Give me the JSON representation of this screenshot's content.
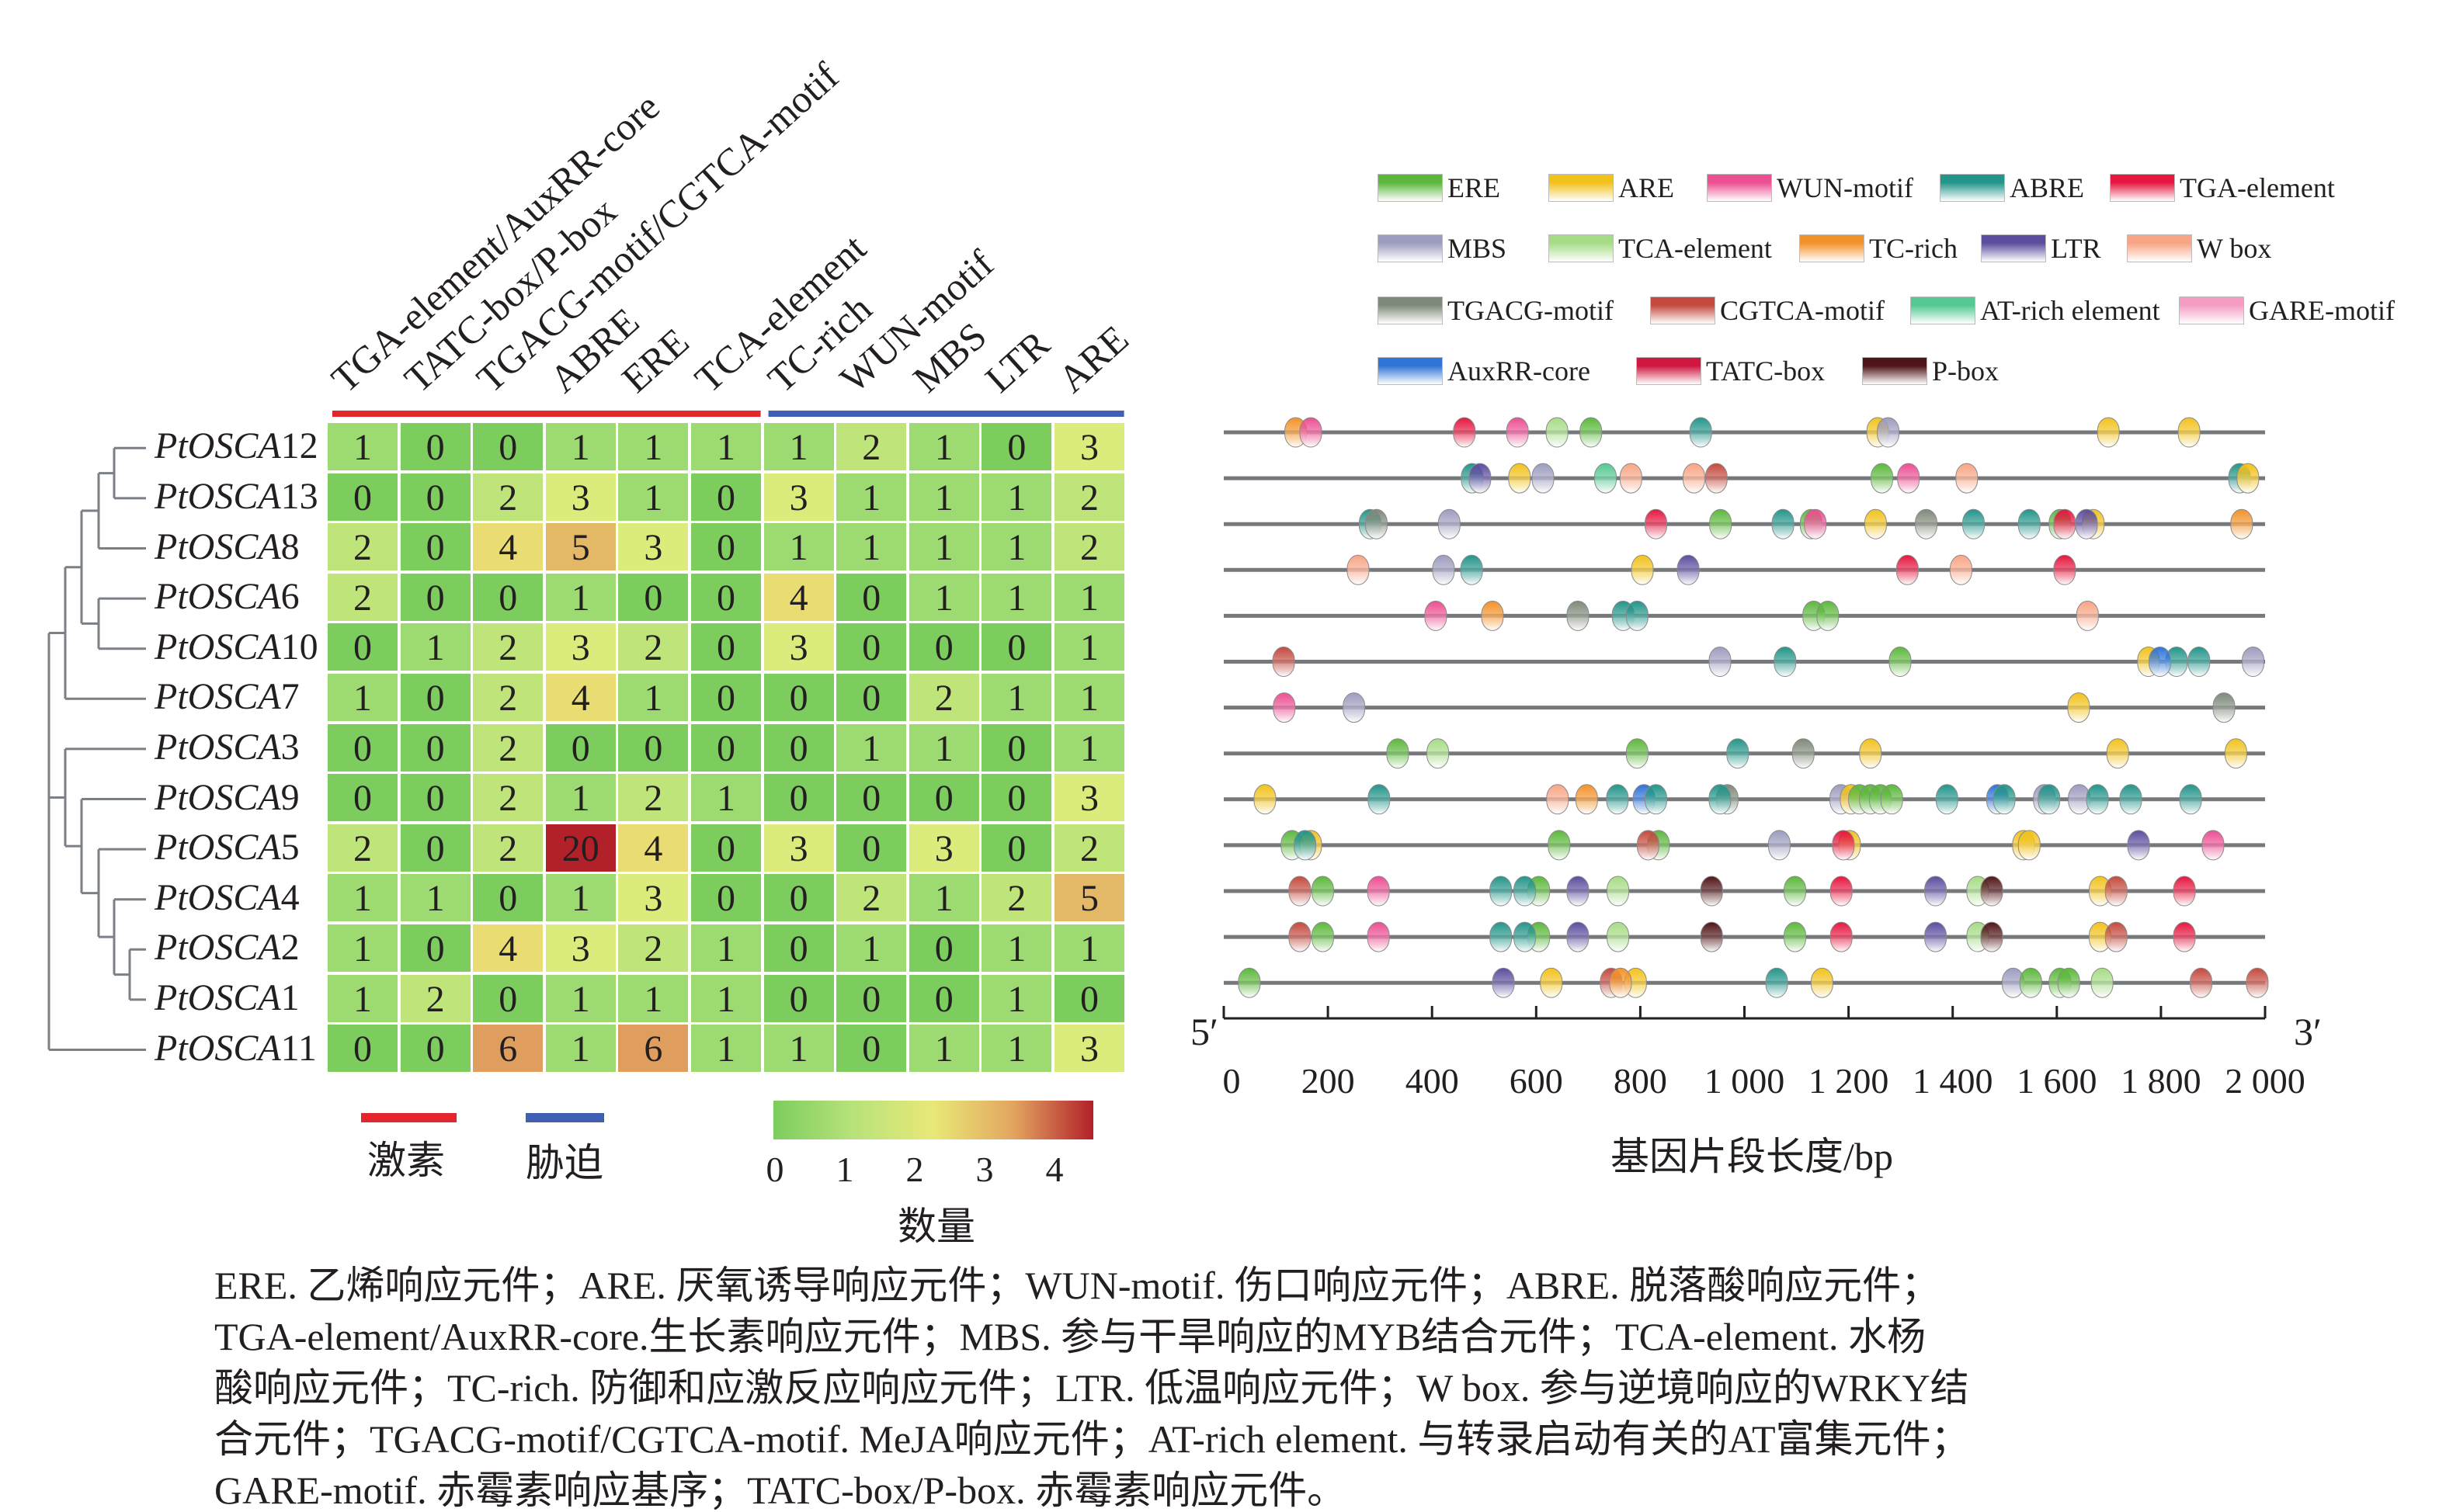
{
  "chart_data": {
    "type": "heatmap",
    "genes": [
      "PtOSCA12",
      "PtOSCA13",
      "PtOSCA8",
      "PtOSCA6",
      "PtOSCA10",
      "PtOSCA7",
      "PtOSCA3",
      "PtOSCA9",
      "PtOSCA5",
      "PtOSCA4",
      "PtOSCA2",
      "PtOSCA1",
      "PtOSCA11"
    ],
    "columns": [
      "TGA-element/AuxRR-core",
      "TATC-box/P-box",
      "TGACG-motif/CGTCA-motif",
      "ABRE",
      "ERE",
      "TCA-element",
      "TC-rich",
      "WUN-motif",
      "MBS",
      "LTR",
      "ARE"
    ],
    "values": [
      [
        1,
        0,
        0,
        1,
        1,
        1,
        1,
        2,
        1,
        0,
        3
      ],
      [
        0,
        0,
        2,
        3,
        1,
        0,
        3,
        1,
        1,
        1,
        2
      ],
      [
        2,
        0,
        4,
        5,
        3,
        0,
        1,
        1,
        1,
        1,
        2
      ],
      [
        2,
        0,
        0,
        1,
        0,
        0,
        4,
        0,
        1,
        1,
        1
      ],
      [
        0,
        1,
        2,
        3,
        2,
        0,
        3,
        0,
        0,
        0,
        1
      ],
      [
        1,
        0,
        2,
        4,
        1,
        0,
        0,
        0,
        2,
        1,
        1
      ],
      [
        0,
        0,
        2,
        0,
        0,
        0,
        0,
        1,
        1,
        0,
        1
      ],
      [
        0,
        0,
        2,
        1,
        2,
        1,
        0,
        0,
        0,
        0,
        3
      ],
      [
        2,
        0,
        2,
        20,
        4,
        0,
        3,
        0,
        3,
        0,
        2
      ],
      [
        1,
        1,
        0,
        1,
        3,
        0,
        0,
        2,
        1,
        2,
        5
      ],
      [
        1,
        0,
        4,
        3,
        2,
        1,
        0,
        1,
        0,
        1,
        1
      ],
      [
        1,
        2,
        0,
        1,
        1,
        1,
        0,
        0,
        0,
        1,
        0
      ],
      [
        0,
        0,
        6,
        1,
        6,
        1,
        1,
        0,
        1,
        1,
        3
      ]
    ],
    "groups": [
      {
        "label": "激素",
        "color": "#e3262b",
        "columns": [
          0,
          5
        ]
      },
      {
        "label": "胁迫",
        "color": "#3f5fb5",
        "columns": [
          6,
          10
        ]
      }
    ],
    "colorbar": {
      "title": "数量",
      "ticks": [
        "0",
        "1",
        "2",
        "3",
        "4"
      ],
      "colors": [
        "#7ccd5e",
        "#b8e27a",
        "#e9e877",
        "#e3a560",
        "#b2202a"
      ]
    },
    "promoter_map": {
      "xlabel": "基因片段长度/bp",
      "xlim": [
        0,
        2000
      ],
      "ticks": [
        "0",
        "200",
        "400",
        "600",
        "800",
        "1 000",
        "1 200",
        "1 400",
        "1 600",
        "1 800",
        "2 000"
      ],
      "five_prime": "5′",
      "three_prime": "3′",
      "rows": [
        [
          [
            "TC-rich",
            138
          ],
          [
            "WUN-motif",
            167
          ],
          [
            "TGA-element",
            462
          ],
          [
            "WUN-motif",
            564
          ],
          [
            "TCA-element",
            640
          ],
          [
            "ERE",
            705
          ],
          [
            "ABRE",
            916
          ],
          [
            "ARE",
            1256
          ],
          [
            "MBS",
            1276
          ],
          [
            "ARE",
            1699
          ],
          [
            "ARE",
            1854
          ]
        ],
        [
          [
            "ABRE",
            477
          ],
          [
            "LTR",
            492
          ],
          [
            "ARE",
            568
          ],
          [
            "MBS",
            613
          ],
          [
            "AT-rich element",
            733
          ],
          [
            "W box",
            782
          ],
          [
            "W box",
            903
          ],
          [
            "CGTCA-motif",
            946
          ],
          [
            "ERE",
            1264
          ],
          [
            "WUN-motif",
            1315
          ],
          [
            "W box",
            1427
          ],
          [
            "ABRE",
            1951
          ],
          [
            "ARE",
            1967
          ]
        ],
        [
          [
            "ABRE",
            281
          ],
          [
            "TGACG-motif",
            293
          ],
          [
            "MBS",
            433
          ],
          [
            "TGA-element",
            830
          ],
          [
            "ERE",
            954
          ],
          [
            "ABRE",
            1074
          ],
          [
            "ERE",
            1128
          ],
          [
            "WUN-motif",
            1136
          ],
          [
            "ARE",
            1252
          ],
          [
            "TGACG-motif",
            1349
          ],
          [
            "ABRE",
            1440
          ],
          [
            "ABRE",
            1547
          ],
          [
            "ERE",
            1606
          ],
          [
            "ARE",
            1670
          ],
          [
            "LTR",
            1657
          ],
          [
            "TGA-element",
            1615
          ],
          [
            "TC-rich",
            1955
          ]
        ],
        [
          [
            "W box",
            258
          ],
          [
            "MBS",
            422
          ],
          [
            "ABRE",
            476
          ],
          [
            "ARE",
            804
          ],
          [
            "LTR",
            892
          ],
          [
            "TGA-element",
            1313
          ],
          [
            "W box",
            1416
          ],
          [
            "TGA-element",
            1615
          ]
        ],
        [
          [
            "WUN-motif",
            407
          ],
          [
            "TC-rich",
            516
          ],
          [
            "TGACG-motif",
            680
          ],
          [
            "ABRE",
            767
          ],
          [
            "ABRE",
            794
          ],
          [
            "ERE",
            1133
          ],
          [
            "ERE",
            1160
          ],
          [
            "W box",
            1659
          ]
        ],
        [
          [
            "CGTCA-motif",
            115
          ],
          [
            "MBS",
            953
          ],
          [
            "ABRE",
            1078
          ],
          [
            "ERE",
            1299
          ],
          [
            "ARE",
            1776
          ],
          [
            "ABRE",
            1830
          ],
          [
            "AuxRR-core",
            1798
          ],
          [
            "ABRE",
            1873
          ],
          [
            "MBS",
            1977
          ]
        ],
        [
          [
            "WUN-motif",
            116
          ],
          [
            "MBS",
            250
          ],
          [
            "ARE",
            1642
          ],
          [
            "TGACG-motif",
            1921
          ]
        ],
        [
          [
            "ERE",
            334
          ],
          [
            "TCA-element",
            411
          ],
          [
            "ERE",
            794
          ],
          [
            "ABRE",
            987
          ],
          [
            "TGACG-motif",
            1113
          ],
          [
            "ARE",
            1242
          ],
          [
            "ARE",
            1717
          ],
          [
            "ARE",
            1944
          ]
        ],
        [
          [
            "ARE",
            79
          ],
          [
            "ABRE",
            298
          ],
          [
            "W box",
            641
          ],
          [
            "TC-rich",
            697
          ],
          [
            "ABRE",
            756
          ],
          [
            "AuxRR-core",
            807
          ],
          [
            "ABRE",
            830
          ],
          [
            "TGACG-motif",
            967
          ],
          [
            "ABRE",
            953
          ],
          [
            "MBS",
            1185
          ],
          [
            "ARE",
            1205
          ],
          [
            "ERE",
            1221
          ],
          [
            "ERE",
            1242
          ],
          [
            "ERE",
            1261
          ],
          [
            "ERE",
            1283
          ],
          [
            "ABRE",
            1389
          ],
          [
            "AuxRR-core",
            1486
          ],
          [
            "ABRE",
            1499
          ],
          [
            "MBS",
            1576
          ],
          [
            "ABRE",
            1585
          ],
          [
            "MBS",
            1643
          ],
          [
            "ABRE",
            1678
          ],
          [
            "ABRE",
            1742
          ],
          [
            "ABRE",
            1857
          ]
        ],
        [
          [
            "ERE",
            131
          ],
          [
            "ARE",
            167
          ],
          [
            "ABRE",
            156
          ],
          [
            "ERE",
            644
          ],
          [
            "ERE",
            835
          ],
          [
            "CGTCA-motif",
            815
          ],
          [
            "MBS",
            1067
          ],
          [
            "ARE",
            1202
          ],
          [
            "TGA-element",
            1190
          ],
          [
            "ARE",
            1536
          ],
          [
            "ARE",
            1547
          ],
          [
            "LTR",
            1757
          ],
          [
            "WUN-motif",
            1900
          ]
        ],
        [
          [
            "CGTCA-motif",
            146
          ],
          [
            "ERE",
            190
          ],
          [
            "WUN-motif",
            297
          ],
          [
            "ABRE",
            532
          ],
          [
            "ERE",
            605
          ],
          [
            "ABRE",
            578
          ],
          [
            "LTR",
            680
          ],
          [
            "TCA-element",
            757
          ],
          [
            "P-box",
            937
          ],
          [
            "ERE",
            1097
          ],
          [
            "TGA-element",
            1186
          ],
          [
            "LTR",
            1367
          ],
          [
            "TCA-element",
            1448
          ],
          [
            "P-box",
            1475
          ],
          [
            "ARE",
            1683
          ],
          [
            "CGTCA-motif",
            1714
          ],
          [
            "TGA-element",
            1845
          ]
        ],
        [
          [
            "CGTCA-motif",
            146
          ],
          [
            "ERE",
            190
          ],
          [
            "WUN-motif",
            297
          ],
          [
            "ABRE",
            532
          ],
          [
            "ERE",
            605
          ],
          [
            "ABRE",
            578
          ],
          [
            "LTR",
            680
          ],
          [
            "TCA-element",
            757
          ],
          [
            "P-box",
            937
          ],
          [
            "ERE",
            1097
          ],
          [
            "TGA-element",
            1186
          ],
          [
            "LTR",
            1367
          ],
          [
            "TCA-element",
            1448
          ],
          [
            "P-box",
            1475
          ],
          [
            "ARE",
            1683
          ],
          [
            "CGTCA-motif",
            1714
          ],
          [
            "TGA-element",
            1845
          ]
        ],
        [
          [
            "ERE",
            49
          ],
          [
            "LTR",
            537
          ],
          [
            "ARE",
            629
          ],
          [
            "CGTCA-motif",
            744
          ],
          [
            "ARE",
            791
          ],
          [
            "TC-rich",
            762
          ],
          [
            "ABRE",
            1062
          ],
          [
            "ARE",
            1149
          ],
          [
            "MBS",
            1516
          ],
          [
            "ERE",
            1550
          ],
          [
            "ERE",
            1606
          ],
          [
            "ERE",
            1623
          ],
          [
            "TCA-element",
            1687
          ],
          [
            "CGTCA-motif",
            1877
          ],
          [
            "CGTCA-motif",
            1985
          ]
        ]
      ]
    },
    "legend": [
      [
        {
          "label": "ERE",
          "color": "#5cb83c"
        },
        {
          "label": "ARE",
          "color": "#f2c21c"
        },
        {
          "label": "WUN-motif",
          "color": "#ec4f92"
        },
        {
          "label": "ABRE",
          "color": "#23958a"
        },
        {
          "label": "TGA-element",
          "color": "#e5173f"
        }
      ],
      [
        {
          "label": "MBS",
          "color": "#9c9cbf"
        },
        {
          "label": "TCA-element",
          "color": "#a6dc86"
        },
        {
          "label": "TC-rich",
          "color": "#f3922a"
        },
        {
          "label": "LTR",
          "color": "#5d4d9e"
        },
        {
          "label": "W box",
          "color": "#f8a585"
        }
      ],
      [
        {
          "label": "TGACG-motif",
          "color": "#7f897a"
        },
        {
          "label": "CGTCA-motif",
          "color": "#c44a3f"
        },
        {
          "label": "AT-rich element",
          "color": "#55c893"
        },
        {
          "label": "GARE-motif",
          "color": "#f49cc4"
        }
      ],
      [
        {
          "label": "AuxRR-core",
          "color": "#2f74d6"
        },
        {
          "label": "TATC-box",
          "color": "#d1163f"
        },
        {
          "label": "P-box",
          "color": "#4f1417"
        }
      ]
    ]
  },
  "caption": [
    "ERE. 乙烯响应元件；ARE. 厌氧诱导响应元件；WUN-motif. 伤口响应元件；ABRE. 脱落酸响应元件；",
    "TGA-element/AuxRR-core.生长素响应元件；MBS. 参与干旱响应的MYB结合元件；TCA-element. 水杨",
    "酸响应元件；TC-rich. 防御和应激反应响应元件；LTR. 低温响应元件；W box. 参与逆境响应的WRKY结",
    "合元件；TGACG-motif/CGTCA-motif. MeJA响应元件；AT-rich element. 与转录启动有关的AT富集元件；",
    "GARE-motif. 赤霉素响应基序；TATC-box/P-box. 赤霉素响应元件。"
  ]
}
